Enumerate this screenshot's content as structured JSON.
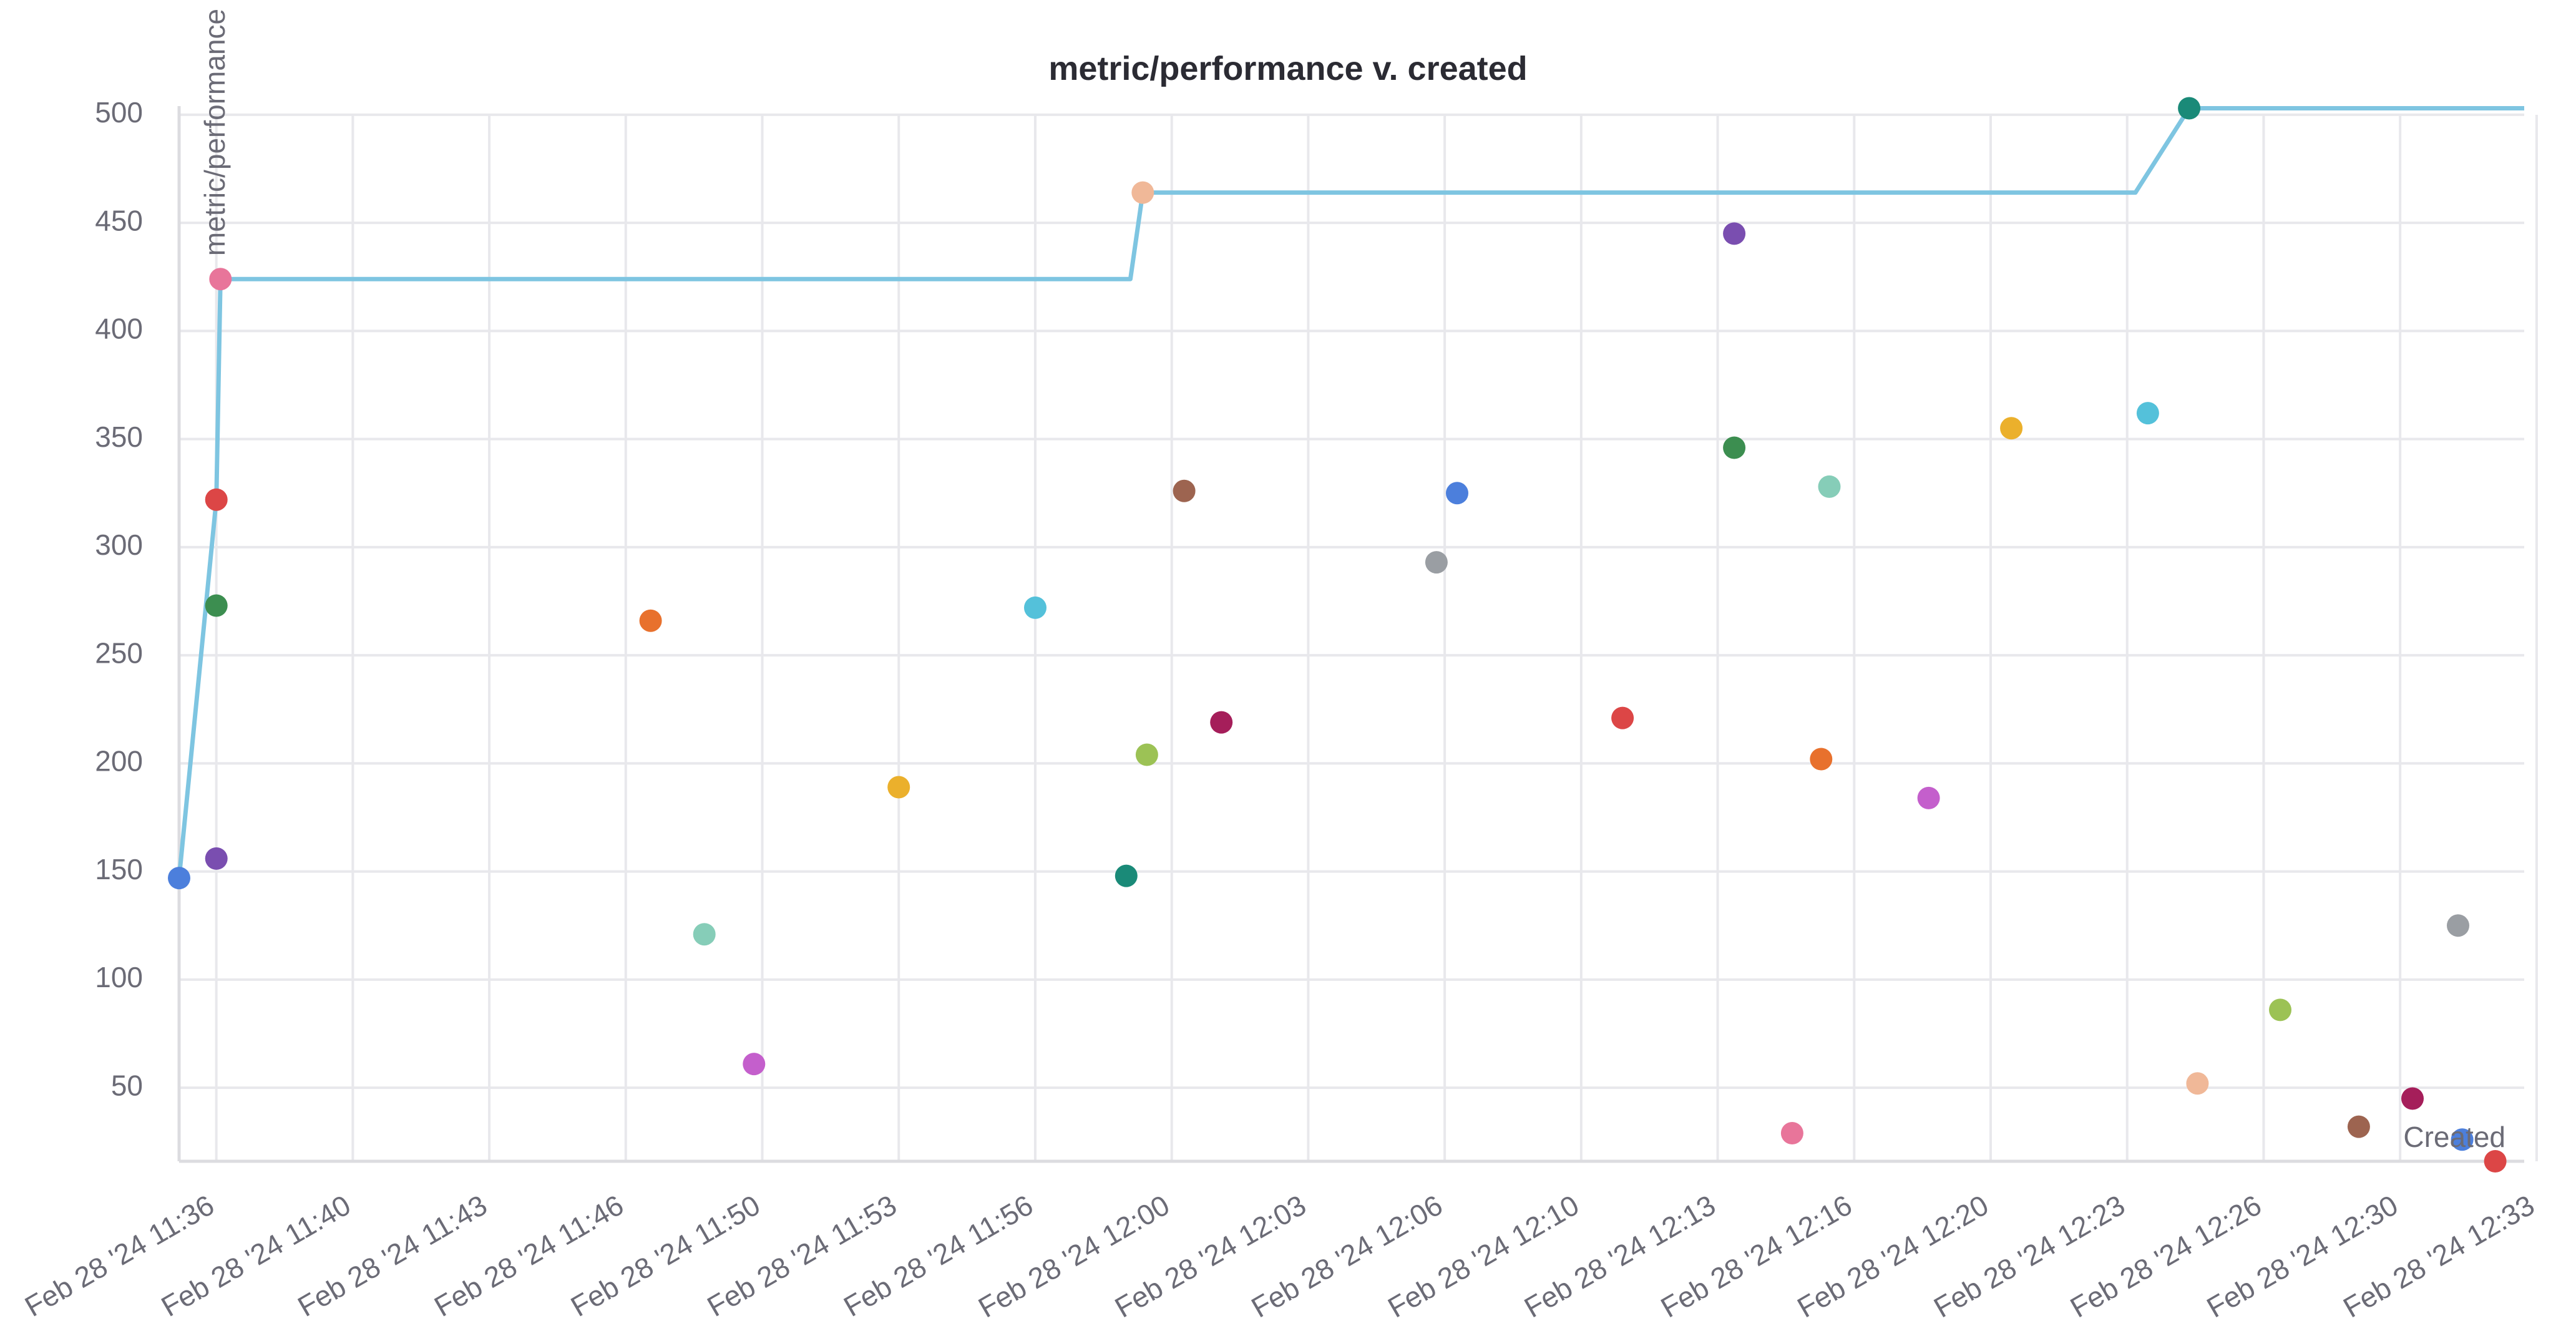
{
  "chart_data": {
    "type": "scatter",
    "title": "metric/performance v. created",
    "xlabel": "Created",
    "ylabel": "metric/performance",
    "ylim": [
      16,
      504
    ],
    "xlim": [
      -0.4,
      56.3
    ],
    "x_unit": "minutes",
    "grid": true,
    "legend": "none",
    "y_ticks": [
      50,
      100,
      150,
      200,
      250,
      300,
      350,
      400,
      450,
      500
    ],
    "x_ticks": [
      {
        "x": 0.5,
        "label": "Feb 28 '24 11:36"
      },
      {
        "x": 3.8,
        "label": "Feb 28 '24 11:40"
      },
      {
        "x": 7.1,
        "label": "Feb 28 '24 11:43"
      },
      {
        "x": 10.4,
        "label": "Feb 28 '24 11:46"
      },
      {
        "x": 13.7,
        "label": "Feb 28 '24 11:50"
      },
      {
        "x": 17.0,
        "label": "Feb 28 '24 11:53"
      },
      {
        "x": 20.3,
        "label": "Feb 28 '24 11:56"
      },
      {
        "x": 23.6,
        "label": "Feb 28 '24 12:00"
      },
      {
        "x": 26.9,
        "label": "Feb 28 '24 12:03"
      },
      {
        "x": 30.2,
        "label": "Feb 28 '24 12:06"
      },
      {
        "x": 33.5,
        "label": "Feb 28 '24 12:10"
      },
      {
        "x": 36.8,
        "label": "Feb 28 '24 12:13"
      },
      {
        "x": 40.1,
        "label": "Feb 28 '24 12:16"
      },
      {
        "x": 43.4,
        "label": "Feb 28 '24 12:20"
      },
      {
        "x": 46.7,
        "label": "Feb 28 '24 12:23"
      },
      {
        "x": 50.0,
        "label": "Feb 28 '24 12:26"
      },
      {
        "x": 53.3,
        "label": "Feb 28 '24 12:30"
      },
      {
        "x": 56.6,
        "label": "Feb 28 '24 12:33"
      }
    ],
    "points": [
      {
        "x": -0.4,
        "y": 147,
        "color": "#4c7fdc"
      },
      {
        "x": 0.5,
        "y": 156,
        "color": "#7a4eb0"
      },
      {
        "x": 0.5,
        "y": 273,
        "color": "#3c8e50"
      },
      {
        "x": 0.5,
        "y": 322,
        "color": "#dc4646"
      },
      {
        "x": 0.6,
        "y": 424,
        "color": "#e8759a"
      },
      {
        "x": 11.0,
        "y": 266,
        "color": "#e8712d"
      },
      {
        "x": 12.3,
        "y": 121,
        "color": "#86cdb8"
      },
      {
        "x": 13.5,
        "y": 61,
        "color": "#c45fcc"
      },
      {
        "x": 17.0,
        "y": 189,
        "color": "#ebb02c"
      },
      {
        "x": 20.3,
        "y": 272,
        "color": "#54c1da"
      },
      {
        "x": 22.5,
        "y": 148,
        "color": "#1a8a78"
      },
      {
        "x": 22.9,
        "y": 464,
        "color": "#f0b898"
      },
      {
        "x": 23.0,
        "y": 204,
        "color": "#9cc255"
      },
      {
        "x": 23.9,
        "y": 326,
        "color": "#9d6450"
      },
      {
        "x": 24.8,
        "y": 219,
        "color": "#a51e5a"
      },
      {
        "x": 30.0,
        "y": 293,
        "color": "#9a9ea3"
      },
      {
        "x": 30.5,
        "y": 325,
        "color": "#4c7fdc"
      },
      {
        "x": 34.5,
        "y": 221,
        "color": "#dc4646"
      },
      {
        "x": 37.2,
        "y": 445,
        "color": "#7a4eb0"
      },
      {
        "x": 37.2,
        "y": 346,
        "color": "#3c8e50"
      },
      {
        "x": 38.6,
        "y": 29,
        "color": "#e8759a"
      },
      {
        "x": 39.5,
        "y": 328,
        "color": "#86cdb8"
      },
      {
        "x": 39.3,
        "y": 202,
        "color": "#e8712d"
      },
      {
        "x": 41.9,
        "y": 184,
        "color": "#c45fcc"
      },
      {
        "x": 43.9,
        "y": 355,
        "color": "#ebb02c"
      },
      {
        "x": 47.2,
        "y": 362,
        "color": "#54c1da"
      },
      {
        "x": 48.2,
        "y": 503,
        "color": "#1a8a78"
      },
      {
        "x": 48.4,
        "y": 52,
        "color": "#f0b898"
      },
      {
        "x": 50.4,
        "y": 86,
        "color": "#9cc255"
      },
      {
        "x": 52.3,
        "y": 32,
        "color": "#9d6450"
      },
      {
        "x": 53.6,
        "y": 45,
        "color": "#a51e5a"
      },
      {
        "x": 54.7,
        "y": 125,
        "color": "#9a9ea3"
      },
      {
        "x": 54.8,
        "y": 26,
        "color": "#4c7fdc"
      },
      {
        "x": 55.6,
        "y": 16,
        "color": "#dc4646"
      }
    ],
    "series": [
      {
        "type": "step-line",
        "color": "#7ec5e1",
        "x": [
          -0.4,
          0.5,
          0.6,
          22.6,
          22.9,
          46.9,
          48.2,
          56.3
        ],
        "y": [
          147,
          322,
          424,
          424,
          464,
          464,
          503,
          503
        ]
      }
    ],
    "colors": {
      "grid": "#e8e8ec",
      "axis": "#dcdce0",
      "tick_text": "#6b6b76",
      "title_text": "#2b2b33"
    }
  }
}
